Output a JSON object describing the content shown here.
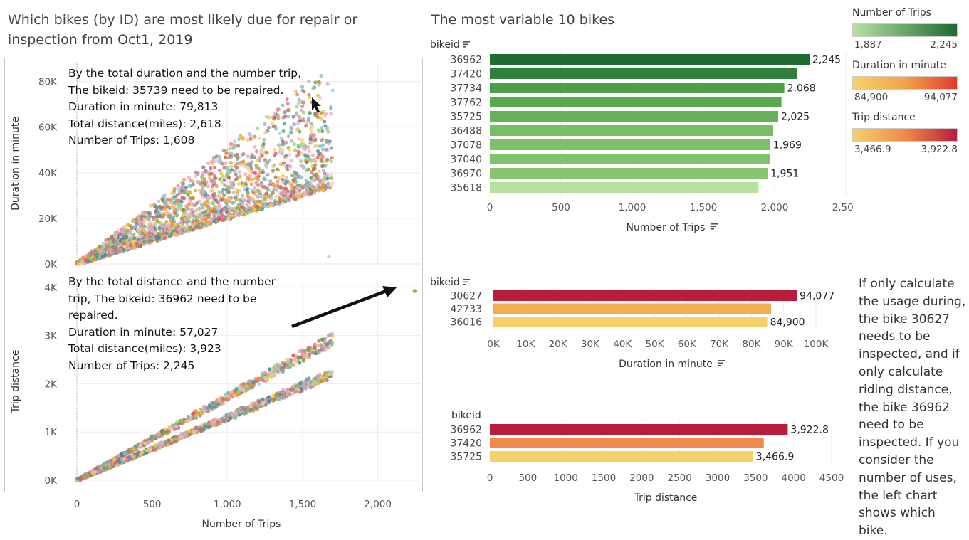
{
  "dashboard": {
    "main_title": "Which bikes (by ID) are most likely due for repair or inspection from Oct1, 2019",
    "right_title": "The most variable 10 bikes",
    "side_note": "If only calculate the usage during, the bike 30627 needs to be inspected, and if only calculate riding distance, the bike 36962 need to be inspected. If you consider the number of uses, the left chart shows which bike."
  },
  "legends": {
    "trips": {
      "title": "Number of Trips",
      "min": "1,887",
      "max": "2,245",
      "color_low": "#b7e1a1",
      "color_high": "#1e6b33"
    },
    "duration": {
      "title": "Duration in minute",
      "min": "84,900",
      "max": "94,077",
      "color_low": "#f6d26a",
      "color_high": "#e03b2f"
    },
    "distance": {
      "title": "Trip distance",
      "min": "3,466.9",
      "max": "3,922.8",
      "color_low": "#f3d26a",
      "color_high": "#b81d3c"
    }
  },
  "chart_data": [
    {
      "id": "scatter-duration",
      "type": "scatter",
      "xlabel": "Number of Trips",
      "ylabel": "Duration in minute",
      "xlim": [
        0,
        2300
      ],
      "ylim": [
        0,
        88000
      ],
      "x_ticks": [
        "0",
        "500",
        "1,000",
        "1,500",
        "2,000"
      ],
      "y_ticks": [
        "0K",
        "20K",
        "40K",
        "60K",
        "80K"
      ],
      "highlight": {
        "x": 1608,
        "y": 79813
      },
      "annotation": "By the total duration and the number trip,\nThe bikeid: 35739 need to be repaired.\nDuration in minute: 79,813\nTotal distance(miles): 2,618\nNumber of Trips: 1,608"
    },
    {
      "id": "scatter-distance",
      "type": "scatter",
      "xlabel": "Number of Trips",
      "ylabel": "Trip distance",
      "xlim": [
        0,
        2300
      ],
      "ylim": [
        0,
        4100
      ],
      "x_ticks": [
        "0",
        "500",
        "1,000",
        "1,500",
        "2,000"
      ],
      "y_ticks": [
        "0K",
        "1K",
        "2K",
        "3K",
        "4K"
      ],
      "highlight": {
        "x": 2245,
        "y": 3923
      },
      "annotation": "By the total distance and the number\ntrip, The bikeid: 36962 need to be\nrepaired.\nDuration in minute: 57,027\nTotal distance(miles): 3,923\nNumber of Trips: 2,245"
    },
    {
      "id": "bar-trips",
      "type": "bar",
      "orientation": "horizontal",
      "dimension": "bikeid",
      "xlabel": "Number of Trips",
      "categories": [
        "36962",
        "37420",
        "37734",
        "37762",
        "35725",
        "36488",
        "37078",
        "37040",
        "36970",
        "35618"
      ],
      "values": [
        2245,
        2160,
        2068,
        2048,
        2025,
        1990,
        1969,
        1965,
        1951,
        1887
      ],
      "labels": [
        "2,245",
        "",
        "2,068",
        "",
        "2,025",
        "",
        "1,969",
        "",
        "1,951",
        ""
      ],
      "xlim": [
        0,
        2500
      ],
      "x_ticks": [
        "0",
        "500",
        "1,000",
        "1,500",
        "2,000",
        "2,500"
      ]
    },
    {
      "id": "bar-duration",
      "type": "bar",
      "orientation": "horizontal",
      "dimension": "bikeid",
      "xlabel": "Duration in minute",
      "categories": [
        "30627",
        "42733",
        "36016"
      ],
      "values": [
        94077,
        86100,
        84900
      ],
      "labels": [
        "94,077",
        "",
        "84,900"
      ],
      "xlim": [
        0,
        100000
      ],
      "x_ticks": [
        "0K",
        "10K",
        "20K",
        "30K",
        "40K",
        "50K",
        "60K",
        "70K",
        "80K",
        "90K",
        "100K"
      ]
    },
    {
      "id": "bar-distance",
      "type": "bar",
      "orientation": "horizontal",
      "dimension": "bikeid",
      "xlabel": "Trip distance",
      "categories": [
        "36962",
        "37420",
        "35725"
      ],
      "values": [
        3922.8,
        3607,
        3466.9
      ],
      "labels": [
        "3,922.8",
        "",
        "3,466.9"
      ],
      "xlim": [
        0,
        4500
      ],
      "x_ticks": [
        "0",
        "500",
        "1000",
        "1500",
        "2000",
        "2500",
        "3000",
        "3500",
        "4000",
        "4500"
      ]
    }
  ]
}
